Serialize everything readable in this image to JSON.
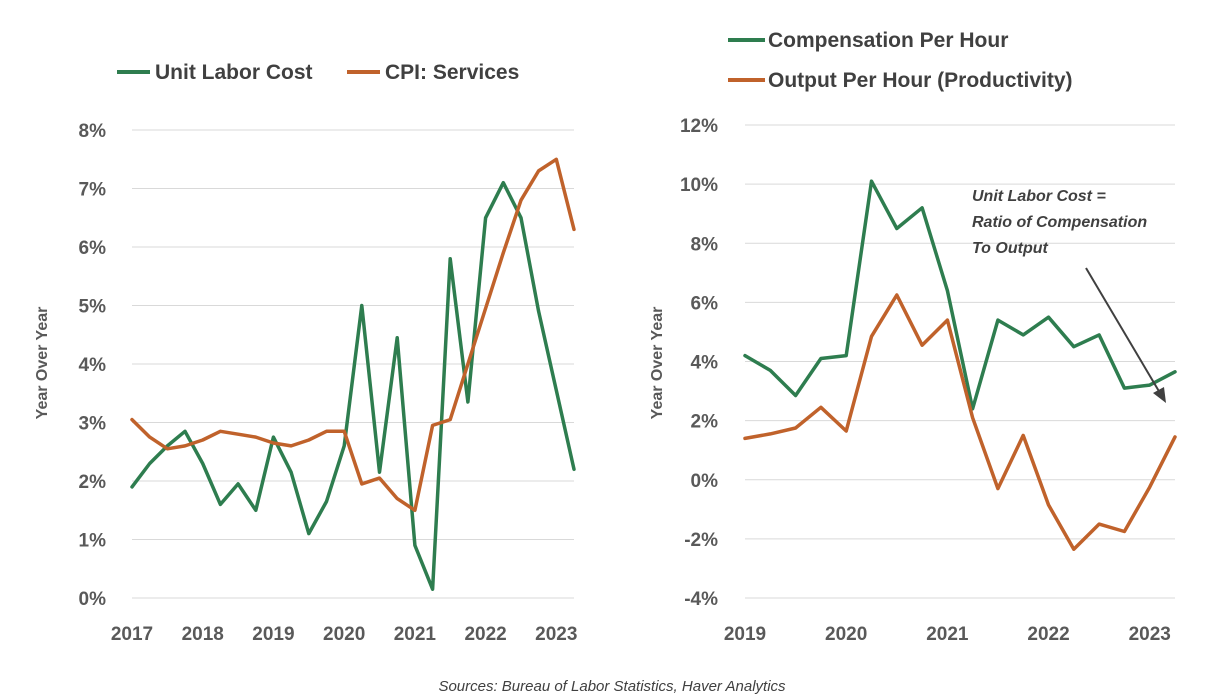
{
  "source_note": "Sources: Bureau of Labor Statistics, Haver Analytics",
  "colors": {
    "green": "#2E7D4F",
    "orange": "#C0622B",
    "grid": "#D9D9D9",
    "text": "#595959"
  },
  "chart_data": [
    {
      "type": "line",
      "title": "",
      "xlabel": "",
      "ylabel": "Year Over Year",
      "xlim": [
        2017,
        2023.25
      ],
      "ylim": [
        0,
        8
      ],
      "ytick_step": 1,
      "ytick_format": "percent",
      "legend": "top-left, horizontal",
      "grid": true,
      "xticks": [
        2017,
        2018,
        2019,
        2020,
        2021,
        2022,
        2023
      ],
      "series": [
        {
          "name": "Unit Labor Cost",
          "color": "#2E7D4F",
          "x": [
            2017,
            2017.25,
            2017.5,
            2017.75,
            2018,
            2018.25,
            2018.5,
            2018.75,
            2019,
            2019.25,
            2019.5,
            2019.75,
            2020,
            2020.25,
            2020.5,
            2020.75,
            2021,
            2021.25,
            2021.5,
            2021.75,
            2022,
            2022.25,
            2022.5,
            2022.75,
            2023,
            2023.25
          ],
          "values": [
            1.9,
            2.3,
            2.6,
            2.85,
            2.3,
            1.6,
            1.95,
            1.5,
            2.75,
            2.15,
            1.1,
            1.65,
            2.6,
            5.0,
            2.15,
            4.45,
            0.9,
            0.15,
            5.8,
            3.35,
            6.5,
            7.1,
            6.5,
            4.9,
            3.55,
            2.2
          ]
        },
        {
          "name": "CPI: Services",
          "color": "#C0622B",
          "x": [
            2017,
            2017.25,
            2017.5,
            2017.75,
            2018,
            2018.25,
            2018.5,
            2018.75,
            2019,
            2019.25,
            2019.5,
            2019.75,
            2020,
            2020.25,
            2020.5,
            2020.75,
            2021,
            2021.25,
            2021.5,
            2021.75,
            2022,
            2022.25,
            2022.5,
            2022.75,
            2023,
            2023.25
          ],
          "values": [
            3.05,
            2.75,
            2.55,
            2.6,
            2.7,
            2.85,
            2.8,
            2.75,
            2.65,
            2.6,
            2.7,
            2.85,
            2.85,
            1.95,
            2.05,
            1.7,
            1.5,
            2.95,
            3.05,
            4.0,
            4.95,
            5.9,
            6.8,
            7.3,
            7.5,
            6.3
          ]
        }
      ]
    },
    {
      "type": "line",
      "title": "",
      "xlabel": "",
      "ylabel": "Year Over Year",
      "xlim": [
        2019,
        2023.25
      ],
      "ylim": [
        -4,
        12
      ],
      "ytick_step": 2,
      "ytick_format": "percent",
      "legend": "top, stacked",
      "grid": true,
      "xticks": [
        2019,
        2020,
        2021,
        2022,
        2023
      ],
      "annotation": [
        "Unit Labor Cost =",
        "Ratio of Compensation",
        "To Output"
      ],
      "series": [
        {
          "name": "Compensation Per Hour",
          "color": "#2E7D4F",
          "x": [
            2019,
            2019.25,
            2019.5,
            2019.75,
            2020,
            2020.25,
            2020.5,
            2020.75,
            2021,
            2021.25,
            2021.5,
            2021.75,
            2022,
            2022.25,
            2022.5,
            2022.75,
            2023,
            2023.25
          ],
          "values": [
            4.2,
            3.7,
            2.85,
            4.1,
            4.2,
            10.1,
            8.5,
            9.2,
            6.4,
            2.4,
            5.4,
            4.9,
            5.5,
            4.5,
            4.9,
            3.1,
            3.2,
            3.65
          ]
        },
        {
          "name": "Output Per Hour (Productivity)",
          "color": "#C0622B",
          "x": [
            2019,
            2019.25,
            2019.5,
            2019.75,
            2020,
            2020.25,
            2020.5,
            2020.75,
            2021,
            2021.25,
            2021.5,
            2021.75,
            2022,
            2022.25,
            2022.5,
            2022.75,
            2023,
            2023.25
          ],
          "values": [
            1.4,
            1.55,
            1.75,
            2.45,
            1.65,
            4.85,
            6.25,
            4.55,
            5.4,
            2.1,
            -0.3,
            1.5,
            -0.85,
            -2.35,
            -1.5,
            -1.75,
            -0.25,
            1.45
          ]
        }
      ]
    }
  ]
}
